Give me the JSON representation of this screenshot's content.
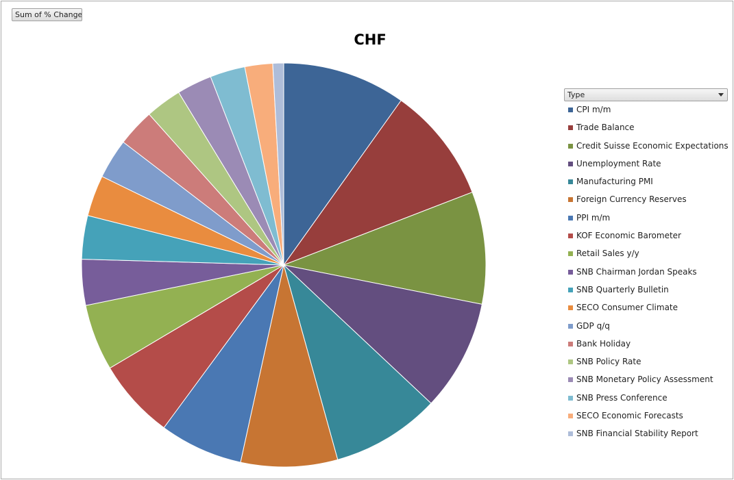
{
  "field_button": {
    "label": "Sum of % Change"
  },
  "filter": {
    "label": "Type"
  },
  "chart_data": {
    "type": "pie",
    "title": "CHF",
    "legend_position": "right",
    "slices": [
      {
        "label": "CPI m/m",
        "value": 10.2,
        "color": "#3d6596"
      },
      {
        "label": "Trade Balance",
        "value": 9.6,
        "color": "#973e3c"
      },
      {
        "label": "Credit Suisse Economic Expectations",
        "value": 9.3,
        "color": "#7a9342"
      },
      {
        "label": "Unemployment Rate",
        "value": 9.2,
        "color": "#634e7f"
      },
      {
        "label": "Manufacturing PMI",
        "value": 9.0,
        "color": "#378898"
      },
      {
        "label": "Foreign Currency Reserves",
        "value": 8.0,
        "color": "#c77533"
      },
      {
        "label": "PPI m/m",
        "value": 6.9,
        "color": "#4a78b3"
      },
      {
        "label": "KOF Economic Barometer",
        "value": 6.6,
        "color": "#b44c49"
      },
      {
        "label": "Retail Sales y/y",
        "value": 5.5,
        "color": "#93b152"
      },
      {
        "label": "SNB Chairman Jordan Speaks",
        "value": 3.8,
        "color": "#775d9a"
      },
      {
        "label": "SNB Quarterly Bulletin",
        "value": 3.6,
        "color": "#45a2b9"
      },
      {
        "label": "SECO Consumer Climate",
        "value": 3.4,
        "color": "#e98c3f"
      },
      {
        "label": "GDP q/q",
        "value": 3.3,
        "color": "#7f9ccb"
      },
      {
        "label": "Bank Holiday",
        "value": 3.1,
        "color": "#cc7c7a"
      },
      {
        "label": "SNB Policy Rate",
        "value": 3.0,
        "color": "#aec682"
      },
      {
        "label": "SNB Monetary Policy Assessment",
        "value": 2.9,
        "color": "#9b8bb5"
      },
      {
        "label": "SNB Press Conference",
        "value": 2.9,
        "color": "#7fbcd1"
      },
      {
        "label": "SECO Economic Forecasts",
        "value": 2.3,
        "color": "#f8ad7b"
      },
      {
        "label": "SNB Financial Stability Report",
        "value": 0.9,
        "color": "#aebdd9"
      }
    ]
  }
}
